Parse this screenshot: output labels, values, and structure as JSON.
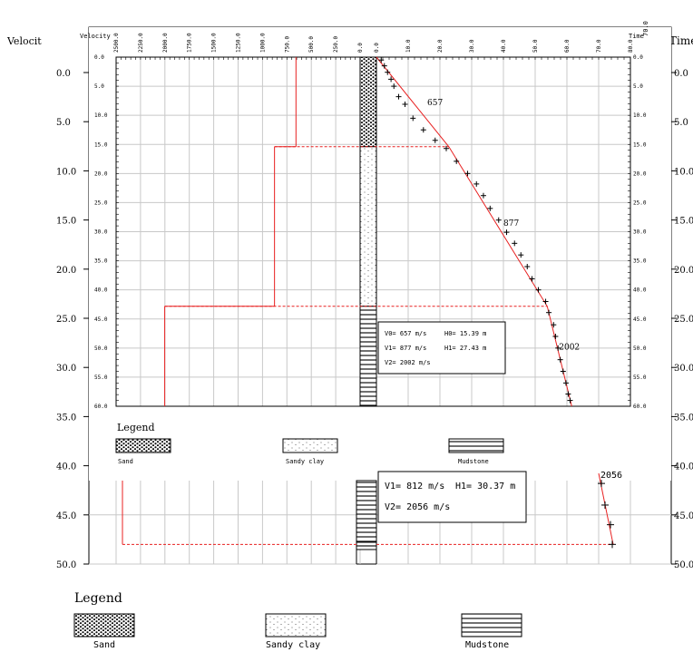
{
  "chart_data": {
    "type": "line",
    "title": "",
    "outer_axes": {
      "left_label": "Velocit",
      "right_label": "Time",
      "ticks": [
        "0.0",
        "5.0",
        "10.0",
        "15.0",
        "20.0",
        "25.0",
        "30.0",
        "35.0",
        "40.0",
        "45.0",
        "50.0"
      ],
      "tick_values": [
        0,
        5,
        10,
        15,
        20,
        25,
        30,
        35,
        40,
        45,
        50
      ],
      "range": [
        0,
        50
      ]
    },
    "panel": {
      "velocity_label": "Velocity",
      "velocity_ticks": [
        "2500.0",
        "2250.0",
        "2000.0",
        "1750.0",
        "1500.0",
        "1250.0",
        "1000.0",
        "750.0",
        "500.0",
        "250.0",
        "0.0"
      ],
      "velocity_values": [
        2500,
        2250,
        2000,
        1750,
        1500,
        1250,
        1000,
        750,
        500,
        250,
        0
      ],
      "velocity_range": [
        2500,
        0
      ],
      "time_label": "Time",
      "time_ticks": [
        "0.0",
        "10.0",
        "20.0",
        "30.0",
        "40.0",
        "50.0",
        "60.0",
        "70.0",
        "80.0"
      ],
      "time_values": [
        0,
        10,
        20,
        30,
        40,
        50,
        60,
        70,
        80
      ],
      "time_range": [
        0,
        80
      ],
      "depth_ticks": [
        "0.0",
        "5.0",
        "10.0",
        "15.0",
        "20.0",
        "25.0",
        "30.0",
        "35.0",
        "40.0",
        "45.0",
        "50.0",
        "55.0",
        "60.0"
      ],
      "depth_values": [
        0,
        5,
        10,
        15,
        20,
        25,
        30,
        35,
        40,
        45,
        50,
        55,
        60
      ],
      "depth_range": [
        0,
        60
      ],
      "right_depth_ticks": [
        "0.0",
        "5.0",
        "10.0",
        "15.0",
        "20.0",
        "25.0",
        "30.0",
        "35.0",
        "40.0",
        "45.0",
        "50.0",
        "55.0",
        "60.0"
      ],
      "right_top_tick": "70.0",
      "interval_boundaries": [
        15.39,
        42.82
      ],
      "velocity_profile": [
        {
          "velocity": 657,
          "top": 0,
          "bottom": 15.39
        },
        {
          "velocity": 877,
          "top": 15.39,
          "bottom": 42.82
        },
        {
          "velocity": 2002,
          "top": 42.82,
          "bottom": 60
        }
      ],
      "time_depth_points": [
        {
          "time": 1.5,
          "depth": 0.5
        },
        {
          "time": 2.5,
          "depth": 1.5
        },
        {
          "time": 3.5,
          "depth": 2.6
        },
        {
          "time": 4.6,
          "depth": 3.8
        },
        {
          "time": 5.5,
          "depth": 5.0
        },
        {
          "time": 7.0,
          "depth": 6.8
        },
        {
          "time": 9.0,
          "depth": 8.1
        },
        {
          "time": 11.5,
          "depth": 10.5
        },
        {
          "time": 14.8,
          "depth": 12.5
        },
        {
          "time": 18.5,
          "depth": 14.3
        },
        {
          "time": 22.0,
          "depth": 15.7
        },
        {
          "time": 25.2,
          "depth": 17.9
        },
        {
          "time": 28.7,
          "depth": 20.0
        },
        {
          "time": 31.5,
          "depth": 21.8
        },
        {
          "time": 33.7,
          "depth": 23.8
        },
        {
          "time": 35.8,
          "depth": 26.0
        },
        {
          "time": 38.5,
          "depth": 28.0
        },
        {
          "time": 41.0,
          "depth": 30.1
        },
        {
          "time": 43.5,
          "depth": 32.0
        },
        {
          "time": 45.5,
          "depth": 34.0
        },
        {
          "time": 47.5,
          "depth": 36.0
        },
        {
          "time": 49.0,
          "depth": 38.1
        },
        {
          "time": 51.0,
          "depth": 40.0
        },
        {
          "time": 53.3,
          "depth": 42.0
        },
        {
          "time": 54.3,
          "depth": 43.9
        },
        {
          "time": 55.8,
          "depth": 46.0
        },
        {
          "time": 56.4,
          "depth": 48.0
        },
        {
          "time": 57.2,
          "depth": 50.0
        },
        {
          "time": 57.9,
          "depth": 52.0
        },
        {
          "time": 58.8,
          "depth": 54.0
        },
        {
          "time": 59.7,
          "depth": 56.0
        },
        {
          "time": 60.4,
          "depth": 57.9
        },
        {
          "time": 61.0,
          "depth": 59.0
        }
      ],
      "fit_line": [
        {
          "time": 0,
          "depth": 0
        },
        {
          "time": 22.8,
          "depth": 15.39
        },
        {
          "time": 53.8,
          "depth": 42.82
        },
        {
          "time": 61.5,
          "depth": 60
        }
      ],
      "fit_labels": [
        {
          "text": "657",
          "time": 16.0,
          "depth": 7.8
        },
        {
          "text": "877",
          "time": 40.0,
          "depth": 28.5
        },
        {
          "text": "2002",
          "time": 57.5,
          "depth": 49.8
        }
      ],
      "results": {
        "v0": "V0=  657 m/s",
        "h0": "H0= 15.39 m",
        "v1": "V1=  877 m/s",
        "h1": "H1= 27.43 m",
        "v2": "V2=  2002 m/s"
      },
      "lithology": [
        {
          "name": "Sand",
          "top": 0,
          "bottom": 15.39
        },
        {
          "name": "Sandy clay",
          "top": 15.39,
          "bottom": 42.82
        },
        {
          "name": "Mudstone",
          "top": 42.82,
          "bottom": 60
        }
      ]
    },
    "lower_panel": {
      "boundary_depth": 48.0,
      "velocity_line_depth_range": [
        40,
        48
      ],
      "points": [
        {
          "time": 0,
          "depth": 41.8
        },
        {
          "time": 0,
          "depth": 44.0
        },
        {
          "time": 0,
          "depth": 46.0
        },
        {
          "time": 0,
          "depth": 48.0
        }
      ],
      "results": {
        "v1": "V1=   812 m/s",
        "h1": "H1= 30.37 m",
        "v2": "V2=  2056 m/s",
        "partial_label": "2056"
      }
    },
    "legend_small": {
      "title": "Legend",
      "items": [
        "Sand",
        "Sandy clay",
        "Mudstone"
      ]
    },
    "legend_large": {
      "title": "Legend",
      "items": [
        "Sand",
        "Sandy clay",
        "Mudstone"
      ]
    },
    "colors": {
      "line": "#e82020",
      "point": "#000000",
      "grid": "#c8c8c8"
    }
  }
}
